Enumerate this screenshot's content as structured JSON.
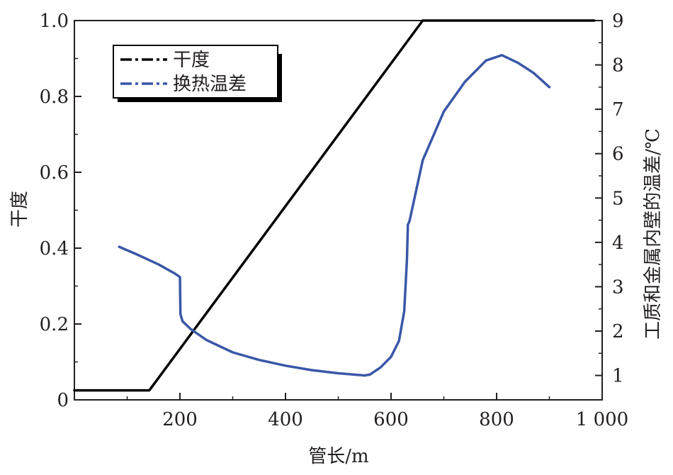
{
  "chart_data": {
    "type": "line",
    "x_axis": {
      "label": "管长/m",
      "range": [
        0,
        1000
      ],
      "ticks": [
        200,
        400,
        600,
        800,
        1000
      ],
      "tick_labels": [
        "200",
        "400",
        "600",
        "800",
        "1 000"
      ]
    },
    "y_axis_left": {
      "label": "干度",
      "range": [
        0,
        1.0
      ],
      "ticks": [
        0,
        0.2,
        0.4,
        0.6,
        0.8,
        1.0
      ],
      "tick_labels": [
        "0",
        "0.2",
        "0.4",
        "0.6",
        "0.8",
        "1.0"
      ]
    },
    "y_axis_right": {
      "label": "工质和金属内壁的温差/℃",
      "range": [
        0.45,
        9
      ],
      "ticks": [
        1,
        2,
        3,
        4,
        5,
        6,
        7,
        8,
        9
      ],
      "tick_labels": [
        "1",
        "2",
        "3",
        "4",
        "5",
        "6",
        "7",
        "8",
        "9"
      ]
    },
    "legend": {
      "position": "top-left"
    },
    "series": [
      {
        "name": "干度",
        "axis": "left",
        "color": "#000000",
        "x": [
          0,
          142,
          660,
          985
        ],
        "y": [
          0.025,
          0.025,
          1.0,
          1.0
        ]
      },
      {
        "name": "换热温差",
        "axis": "right",
        "color": "#3a57a7",
        "x": [
          85,
          120,
          160,
          190,
          200,
          201,
          205,
          220,
          250,
          300,
          350,
          400,
          450,
          500,
          550,
          560,
          580,
          600,
          615,
          625,
          630,
          632,
          635,
          660,
          700,
          740,
          780,
          810,
          840,
          870,
          900
        ],
        "y": [
          3.9,
          3.72,
          3.5,
          3.3,
          3.22,
          2.38,
          2.22,
          2.05,
          1.8,
          1.52,
          1.35,
          1.22,
          1.12,
          1.05,
          1.0,
          1.02,
          1.18,
          1.42,
          1.78,
          2.45,
          3.6,
          4.4,
          4.48,
          5.85,
          6.95,
          7.62,
          8.1,
          8.22,
          8.05,
          7.82,
          7.5
        ]
      }
    ]
  }
}
